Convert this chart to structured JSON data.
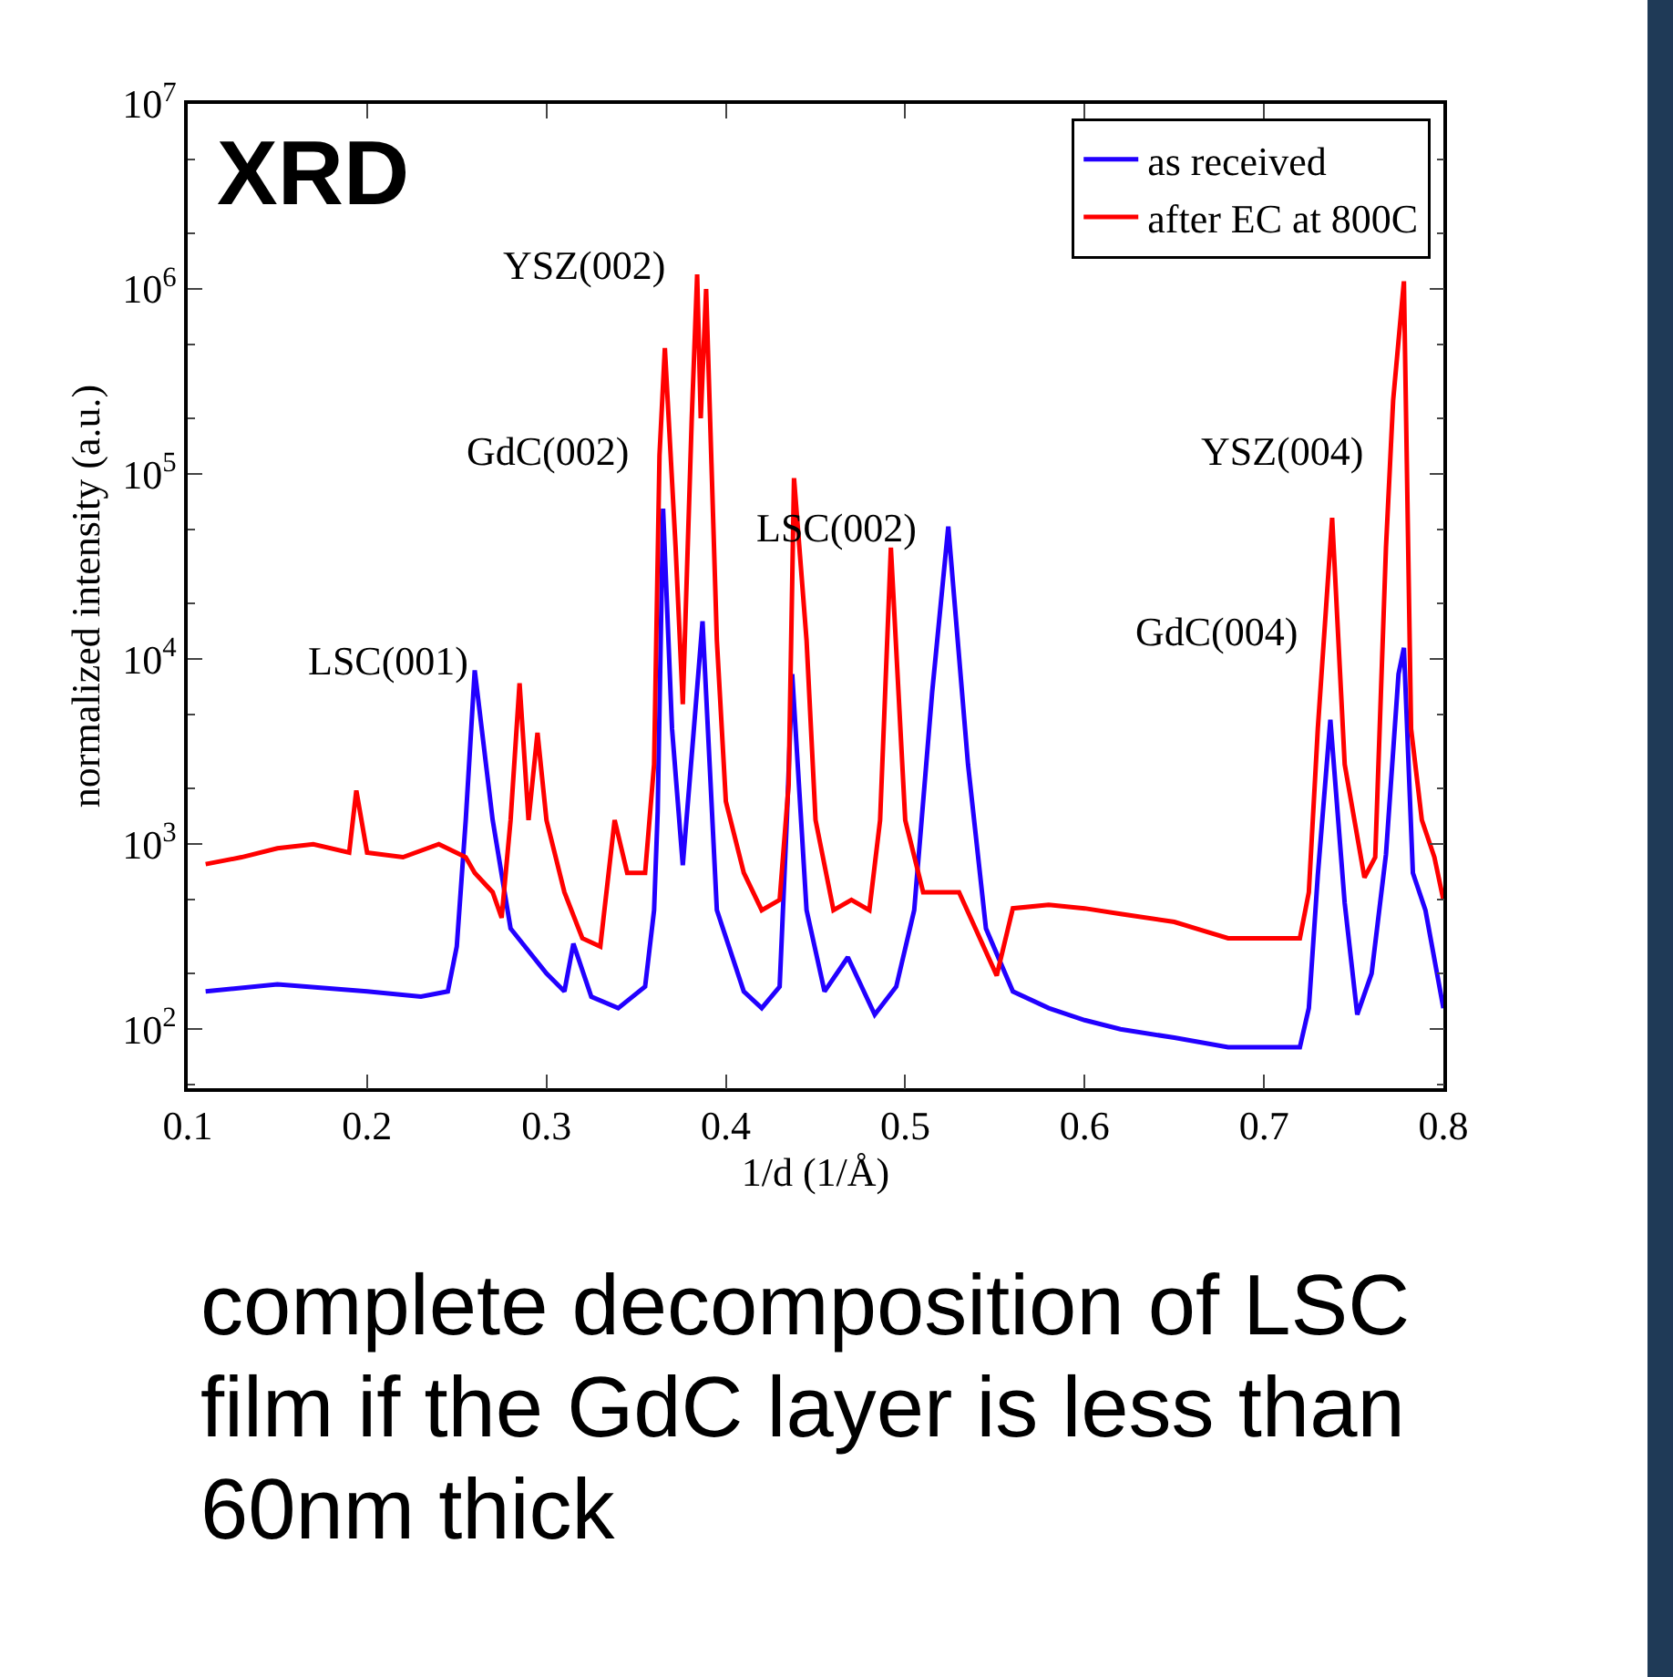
{
  "chart_data": {
    "type": "line",
    "xlabel": "1/d (1/Å)",
    "ylabel": "normalized intensity (a.u.)",
    "log": "y",
    "grid": false,
    "legend": "top right",
    "marker": "none",
    "line_style": "solid",
    "xlim": [
      0.1,
      0.8
    ],
    "xticks": [
      0.1,
      0.2,
      0.3,
      0.4,
      0.5,
      0.6,
      0.7,
      0.8
    ],
    "ylim": [
      48,
      10000000
    ],
    "yticks": [
      {
        "value": 100,
        "label": "10$^{2}$"
      },
      {
        "value": 1000,
        "label": "10$^{3}$"
      },
      {
        "value": 10000,
        "label": "10$^{4}$"
      },
      {
        "value": 100000,
        "label": "10$^{5}$"
      },
      {
        "value": 1000000,
        "label": "10$^{6}$"
      },
      {
        "value": 10000000,
        "label": "10$^{7}$"
      }
    ],
    "series": [
      {
        "name": "as received",
        "color": "#2200ff",
        "x": [
          0.11,
          0.15,
          0.2,
          0.23,
          0.245,
          0.25,
          0.255,
          0.26,
          0.27,
          0.28,
          0.3,
          0.31,
          0.315,
          0.325,
          0.34,
          0.355,
          0.36,
          0.362,
          0.365,
          0.37,
          0.376,
          0.382,
          0.387,
          0.395,
          0.41,
          0.42,
          0.43,
          0.434,
          0.437,
          0.445,
          0.455,
          0.468,
          0.483,
          0.495,
          0.505,
          0.515,
          0.524,
          0.535,
          0.545,
          0.56,
          0.58,
          0.6,
          0.62,
          0.65,
          0.68,
          0.72,
          0.725,
          0.73,
          0.737,
          0.745,
          0.752,
          0.76,
          0.768,
          0.775,
          0.778,
          0.783,
          0.79,
          0.8
        ],
        "values": [
          160,
          175,
          160,
          150,
          160,
          280,
          1350,
          8700,
          1350,
          350,
          200,
          160,
          290,
          150,
          130,
          170,
          440,
          1500,
          65000,
          4200,
          770,
          4000,
          16000,
          440,
          160,
          130,
          170,
          1350,
          8300,
          440,
          160,
          245,
          120,
          170,
          440,
          6600,
          52000,
          2700,
          350,
          160,
          130,
          112,
          100,
          90,
          80,
          80,
          130,
          680,
          4700,
          480,
          120,
          200,
          880,
          8300,
          11500,
          700,
          440,
          130
        ]
      },
      {
        "name": "after EC at 800C",
        "color": "#ff0000",
        "x": [
          0.11,
          0.13,
          0.15,
          0.17,
          0.19,
          0.194,
          0.2,
          0.22,
          0.24,
          0.255,
          0.26,
          0.27,
          0.275,
          0.28,
          0.285,
          0.29,
          0.295,
          0.3,
          0.31,
          0.32,
          0.33,
          0.338,
          0.345,
          0.355,
          0.36,
          0.363,
          0.366,
          0.372,
          0.376,
          0.381,
          0.384,
          0.386,
          0.389,
          0.395,
          0.4,
          0.41,
          0.42,
          0.43,
          0.435,
          0.438,
          0.445,
          0.45,
          0.46,
          0.47,
          0.48,
          0.486,
          0.492,
          0.5,
          0.51,
          0.53,
          0.551,
          0.56,
          0.58,
          0.6,
          0.62,
          0.65,
          0.68,
          0.72,
          0.725,
          0.73,
          0.738,
          0.745,
          0.756,
          0.762,
          0.768,
          0.772,
          0.778,
          0.782,
          0.788,
          0.795,
          0.8
        ],
        "values": [
          780,
          850,
          950,
          1000,
          900,
          1950,
          900,
          850,
          1000,
          850,
          700,
          550,
          400,
          1350,
          7400,
          1350,
          4000,
          1350,
          550,
          310,
          280,
          1350,
          700,
          700,
          2700,
          126000,
          480000,
          40000,
          5700,
          200000,
          1200000,
          200000,
          1000000,
          12600,
          1700,
          700,
          440,
          500,
          2100,
          95000,
          12600,
          1350,
          440,
          500,
          440,
          1350,
          40000,
          1350,
          550,
          550,
          195,
          450,
          470,
          450,
          420,
          380,
          310,
          310,
          550,
          4200,
          58000,
          2700,
          660,
          850,
          40000,
          250000,
          1100000,
          4200,
          1350,
          850,
          500
        ]
      }
    ],
    "annotations": [
      "XRD",
      "LSC(001)",
      "GdC(002)",
      "YSZ(002)",
      "LSC(002)",
      "GdC(004)",
      "YSZ(004)",
      "complete decomposition of LSC film if the GdC layer is less than 60nm thick"
    ]
  }
}
